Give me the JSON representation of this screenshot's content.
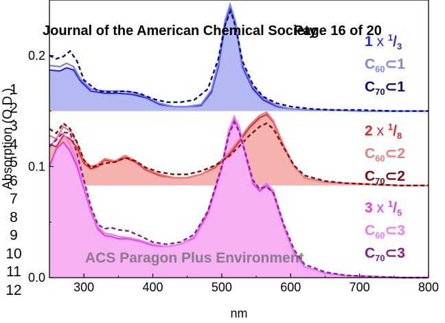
{
  "header": {
    "journal": "Journal of the American Chemical Society",
    "page": "Page 16 of 20"
  },
  "watermark": "ACS Paragon Plus Environment",
  "line_numbers": [
    "1",
    "2",
    "3",
    "4",
    "5",
    "6",
    "7",
    "8",
    "9",
    "10",
    "11",
    "12"
  ],
  "legend": {
    "g1": {
      "title": "1",
      "factor": "1",
      "den": "3",
      "a_sub": "60",
      "a_num": "1",
      "b_sub": "70",
      "b_num": "1"
    },
    "g2": {
      "title": "2",
      "factor": "1",
      "den": "8",
      "a_sub": "60",
      "a_num": "2",
      "b_sub": "70",
      "b_num": "2"
    },
    "g3": {
      "title": "3",
      "factor": "1",
      "den": "5",
      "a_sub": "60",
      "a_num": "3",
      "b_sub": "70",
      "b_num": "3"
    }
  },
  "colors": {
    "c1": "#2a2ae0",
    "c1_light": "#7a86f0",
    "c1_dark": "#0a0a8c",
    "fill1": "#b4b9f4",
    "c2": "#e8262a",
    "c2_light": "#f07a78",
    "c2_dark": "#7e0a0a",
    "fill2": "#f5b3b0",
    "c3": "#e63ae6",
    "c3_light": "#f07af0",
    "c3_dark": "#8a1a8e",
    "fill3": "#f6b0f4"
  },
  "chart_data": {
    "type": "line",
    "xlabel": "nm",
    "ylabel": "Absorption (O.D.)",
    "xlim": [
      250,
      800
    ],
    "ylim": [
      0.0,
      0.25
    ],
    "xticks": [
      300,
      400,
      500,
      600,
      700,
      800
    ],
    "yticks": [
      0.0,
      0.1,
      0.2
    ],
    "groups": [
      {
        "baseline": 0.15,
        "series": [
          {
            "name": "1 x 1/3",
            "role": "fill",
            "x": [
              250,
              265,
              275,
              285,
              295,
              310,
              330,
              350,
              370,
              390,
              410,
              430,
              450,
              470,
              485,
              495,
              505,
              512,
              520,
              530,
              545,
              560,
              580,
              600,
              630,
              660,
              700,
              750,
              800
            ],
            "y": [
              0.187,
              0.186,
              0.189,
              0.187,
              0.177,
              0.168,
              0.166,
              0.166,
              0.165,
              0.162,
              0.156,
              0.154,
              0.154,
              0.155,
              0.167,
              0.19,
              0.228,
              0.244,
              0.228,
              0.19,
              0.17,
              0.16,
              0.154,
              0.152,
              0.151,
              0.151,
              0.15,
              0.15,
              0.15
            ]
          },
          {
            "name": "C60⊂1",
            "role": "light",
            "x": [
              250,
              265,
              275,
              285,
              295,
              310,
              330,
              350,
              370,
              390,
              410,
              430,
              450,
              470,
              485,
              495,
              505,
              512,
              520,
              530,
              545,
              560,
              580,
              600,
              630,
              660,
              700,
              750,
              800
            ],
            "y": [
              0.191,
              0.19,
              0.193,
              0.19,
              0.179,
              0.17,
              0.168,
              0.168,
              0.167,
              0.163,
              0.157,
              0.154,
              0.154,
              0.156,
              0.169,
              0.193,
              0.232,
              0.246,
              0.23,
              0.192,
              0.172,
              0.162,
              0.155,
              0.152,
              0.151,
              0.151,
              0.15,
              0.15,
              0.15
            ]
          },
          {
            "name": "C70⊂1",
            "role": "dashed",
            "x": [
              250,
              260,
              270,
              280,
              290,
              300,
              320,
              340,
              360,
              380,
              400,
              420,
              440,
              460,
              480,
              495,
              505,
              513,
              520,
              530,
              545,
              560,
              580,
              600,
              630,
              660,
              700,
              750,
              800
            ],
            "y": [
              0.2,
              0.197,
              0.199,
              0.204,
              0.195,
              0.178,
              0.168,
              0.167,
              0.168,
              0.166,
              0.161,
              0.158,
              0.158,
              0.16,
              0.17,
              0.197,
              0.228,
              0.24,
              0.226,
              0.195,
              0.174,
              0.163,
              0.157,
              0.154,
              0.152,
              0.151,
              0.151,
              0.15,
              0.15
            ]
          }
        ]
      },
      {
        "baseline": 0.083,
        "series": [
          {
            "name": "2 x 1/8",
            "role": "fill",
            "x": [
              250,
              260,
              270,
              280,
              290,
              300,
              310,
              320,
              330,
              345,
              360,
              375,
              390,
              410,
              430,
              450,
              470,
              490,
              510,
              525,
              540,
              555,
              565,
              575,
              590,
              605,
              620,
              650,
              680,
              720,
              760,
              800
            ],
            "y": [
              0.12,
              0.118,
              0.128,
              0.125,
              0.117,
              0.103,
              0.098,
              0.1,
              0.106,
              0.104,
              0.108,
              0.104,
              0.097,
              0.092,
              0.09,
              0.09,
              0.093,
              0.099,
              0.11,
              0.122,
              0.135,
              0.144,
              0.147,
              0.14,
              0.118,
              0.1,
              0.09,
              0.086,
              0.085,
              0.084,
              0.083,
              0.083
            ]
          },
          {
            "name": "C60⊂2",
            "role": "light",
            "x": [
              250,
              260,
              270,
              280,
              290,
              300,
              310,
              320,
              330,
              345,
              360,
              375,
              390,
              410,
              430,
              450,
              470,
              490,
              510,
              525,
              540,
              555,
              565,
              575,
              590,
              605,
              620,
              650,
              680,
              720,
              760,
              800
            ],
            "y": [
              0.128,
              0.125,
              0.136,
              0.132,
              0.121,
              0.105,
              0.1,
              0.102,
              0.107,
              0.105,
              0.11,
              0.105,
              0.098,
              0.093,
              0.09,
              0.09,
              0.093,
              0.1,
              0.112,
              0.124,
              0.137,
              0.146,
              0.149,
              0.141,
              0.119,
              0.1,
              0.09,
              0.086,
              0.085,
              0.084,
              0.083,
              0.083
            ]
          },
          {
            "name": "C70⊂2",
            "role": "dashed",
            "x": [
              250,
              260,
              270,
              280,
              290,
              300,
              310,
              320,
              330,
              345,
              360,
              375,
              390,
              410,
              430,
              450,
              470,
              490,
              510,
              525,
              540,
              555,
              565,
              575,
              590,
              605,
              620,
              650,
              680,
              720,
              760,
              800
            ],
            "y": [
              0.134,
              0.13,
              0.139,
              0.134,
              0.122,
              0.106,
              0.099,
              0.101,
              0.103,
              0.104,
              0.108,
              0.105,
              0.099,
              0.095,
              0.093,
              0.093,
              0.096,
              0.101,
              0.109,
              0.118,
              0.128,
              0.136,
              0.139,
              0.134,
              0.117,
              0.101,
              0.092,
              0.087,
              0.085,
              0.084,
              0.083,
              0.083
            ]
          }
        ]
      },
      {
        "baseline": 0.0,
        "series": [
          {
            "name": "3 x 1/5",
            "role": "fill",
            "x": [
              250,
              260,
              270,
              280,
              290,
              300,
              310,
              320,
              330,
              340,
              350,
              365,
              380,
              400,
              420,
              440,
              460,
              480,
              500,
              510,
              518,
              525,
              535,
              545,
              555,
              565,
              575,
              590,
              605,
              620,
              650,
              680,
              720,
              760,
              800
            ],
            "y": [
              0.1,
              0.116,
              0.122,
              0.114,
              0.1,
              0.08,
              0.06,
              0.044,
              0.038,
              0.037,
              0.035,
              0.035,
              0.033,
              0.029,
              0.028,
              0.03,
              0.036,
              0.058,
              0.099,
              0.13,
              0.142,
              0.134,
              0.11,
              0.085,
              0.078,
              0.083,
              0.076,
              0.046,
              0.022,
              0.01,
              0.004,
              0.002,
              0.001,
              0.0,
              0.0
            ]
          },
          {
            "name": "C60⊂3",
            "role": "light",
            "x": [
              250,
              260,
              270,
              280,
              290,
              300,
              310,
              320,
              330,
              340,
              350,
              365,
              380,
              400,
              420,
              440,
              460,
              480,
              500,
              510,
              518,
              525,
              535,
              545,
              555,
              565,
              575,
              590,
              605,
              620,
              650,
              680,
              720,
              760,
              800
            ],
            "y": [
              0.117,
              0.126,
              0.13,
              0.12,
              0.104,
              0.083,
              0.062,
              0.046,
              0.04,
              0.039,
              0.037,
              0.036,
              0.034,
              0.03,
              0.028,
              0.03,
              0.037,
              0.06,
              0.101,
              0.132,
              0.145,
              0.136,
              0.112,
              0.087,
              0.08,
              0.085,
              0.078,
              0.047,
              0.023,
              0.01,
              0.004,
              0.002,
              0.001,
              0.0,
              0.0
            ]
          },
          {
            "name": "C70⊂3",
            "role": "dashed",
            "x": [
              250,
              260,
              270,
              280,
              290,
              300,
              310,
              320,
              330,
              340,
              350,
              365,
              380,
              400,
              420,
              440,
              460,
              480,
              500,
              510,
              518,
              525,
              535,
              545,
              555,
              565,
              575,
              590,
              605,
              620,
              650,
              680,
              720,
              760,
              800
            ],
            "y": [
              0.118,
              0.124,
              0.131,
              0.13,
              0.112,
              0.088,
              0.064,
              0.048,
              0.044,
              0.045,
              0.043,
              0.042,
              0.038,
              0.032,
              0.03,
              0.032,
              0.039,
              0.06,
              0.1,
              0.128,
              0.14,
              0.132,
              0.11,
              0.088,
              0.08,
              0.082,
              0.076,
              0.048,
              0.025,
              0.012,
              0.005,
              0.002,
              0.001,
              0.0,
              0.0
            ]
          }
        ]
      }
    ]
  }
}
